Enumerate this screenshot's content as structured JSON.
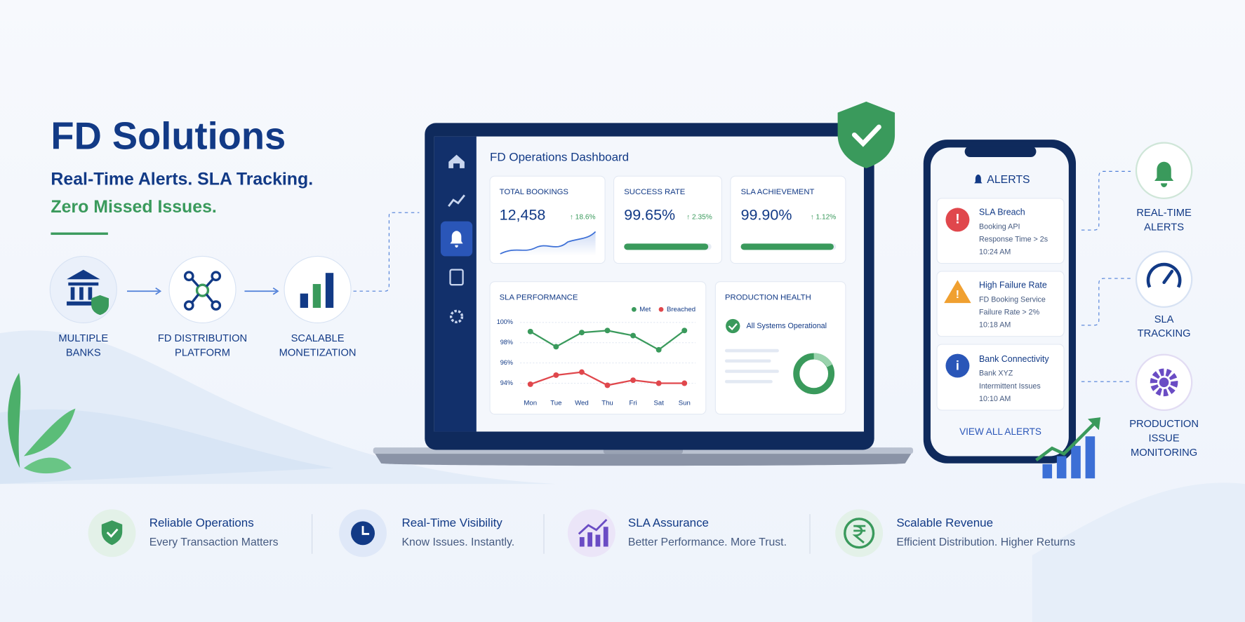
{
  "hero": {
    "title": "FD Solutions",
    "line1": "Real-Time Alerts. SLA Tracking.",
    "line2": "Zero Missed Issues."
  },
  "flow": [
    {
      "lines": [
        "MULTIPLE",
        "BANKS"
      ]
    },
    {
      "lines": [
        "FD DISTRIBUTION",
        "PLATFORM"
      ]
    },
    {
      "lines": [
        "SCALABLE",
        "MONETIZATION"
      ]
    }
  ],
  "dashboard": {
    "title": "FD Operations Dashboard",
    "kpis": [
      {
        "label": "TOTAL BOOKINGS",
        "value": "12,458",
        "change": "↑ 18.6%"
      },
      {
        "label": "SUCCESS RATE",
        "value": "99.65%",
        "change": "↑ 2.35%"
      },
      {
        "label": "SLA ACHIEVEMENT",
        "value": "99.90%",
        "change": "↑ 1.12%"
      }
    ],
    "production_health": {
      "title": "PRODUCTION HEALTH",
      "status": "All Systems Operational"
    }
  },
  "chart_data": {
    "type": "line",
    "title": "SLA PERFORMANCE",
    "categories": [
      "Mon",
      "Tue",
      "Wed",
      "Thu",
      "Fri",
      "Sat",
      "Sun"
    ],
    "series": [
      {
        "name": "Met",
        "color": "#3a9a5c",
        "values": [
          99.1,
          97.6,
          99.0,
          99.2,
          98.7,
          97.3,
          99.2
        ]
      },
      {
        "name": "Breached",
        "color": "#e0474c",
        "values": [
          93.9,
          94.8,
          95.1,
          93.8,
          94.3,
          94.0,
          94.0
        ]
      }
    ],
    "ylim": [
      93.3,
      100.5
    ],
    "yticks": [
      {
        "value": 94,
        "label": "94%"
      },
      {
        "value": 96,
        "label": "96%"
      },
      {
        "value": 98,
        "label": "98%"
      },
      {
        "value": 100,
        "label": "100%"
      }
    ],
    "grid": true,
    "legend": "top-right"
  },
  "phone": {
    "title": "ALERTS",
    "alerts": [
      {
        "title": "SLA Breach",
        "lines": [
          "Booking API",
          "Response Time > 2s",
          "10:24 AM"
        ]
      },
      {
        "title": "High Failure Rate",
        "lines": [
          "FD Booking Service",
          "Failure Rate > 2%",
          "10:18 AM"
        ]
      },
      {
        "title": "Bank Connectivity",
        "lines": [
          "Bank XYZ",
          "Intermittent Issues",
          "10:10 AM"
        ]
      }
    ],
    "link": "VIEW ALL ALERTS"
  },
  "side_features": [
    {
      "lines": [
        "REAL-TIME",
        "ALERTS"
      ]
    },
    {
      "lines": [
        "SLA",
        "TRACKING"
      ]
    },
    {
      "lines": [
        "PRODUCTION",
        "ISSUE",
        "MONITORING"
      ]
    }
  ],
  "footer": [
    {
      "title": "Reliable Operations",
      "subtitle": "Every Transaction Matters"
    },
    {
      "title": "Real-Time Visibility",
      "subtitle": "Know Issues. Instantly."
    },
    {
      "title": "SLA Assurance",
      "subtitle": "Better Performance. More Trust."
    },
    {
      "title": "Scalable Revenue",
      "subtitle": "Efficient Distribution. Higher Returns"
    }
  ]
}
